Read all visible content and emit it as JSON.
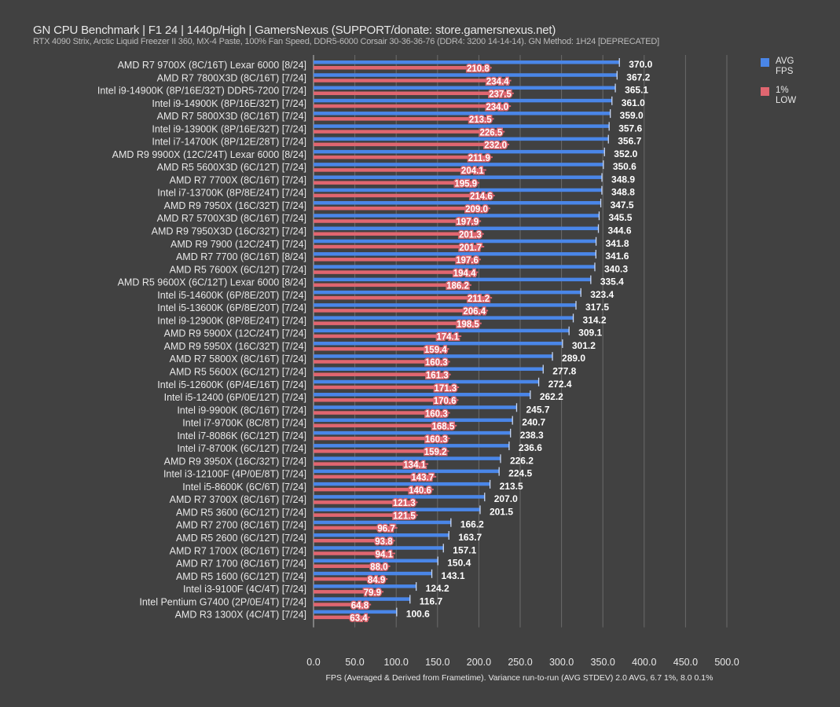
{
  "header": {
    "title": "GN CPU Benchmark | F1 24 | 1440p/High | GamersNexus (SUPPORT/donate: store.gamersnexus.net)",
    "subtitle": "RTX 4090 Strix, Arctic Liquid Freezer II 360, MX-4 Paste, 100% Fan Speed, DDR5-6000 Corsair 30-36-36-76 (DDR4: 3200 14-14-14). GN Method: 1H24 [DEPRECATED]"
  },
  "legend": [
    {
      "line1": "AVG",
      "line2": "FPS",
      "color": "#4a86e8"
    },
    {
      "line1": "1%",
      "line2": "LOW",
      "color": "#e06670"
    }
  ],
  "chart_data": {
    "type": "bar",
    "orientation": "horizontal",
    "xlabel": "FPS (Averaged & Derived from Frametime). Variance run-to-run (AVG STDEV) 2.0 AVG, 6.7 1%, 8.0 0.1%",
    "xlim": [
      0,
      500
    ],
    "xticks": [
      "0.0",
      "50.0",
      "100.0",
      "150.0",
      "200.0",
      "250.0",
      "300.0",
      "350.0",
      "400.0",
      "450.0",
      "500.0"
    ],
    "grid": true,
    "legend_position": "top-right",
    "categories": [
      "AMD R7 9700X (8C/16T) Lexar 6000 [8/24]",
      "AMD R7 7800X3D (8C/16T) [7/24]",
      "Intel i9-14900K (8P/16E/32T) DDR5-7200 [7/24]",
      "Intel i9-14900K (8P/16E/32T) [7/24]",
      "AMD R7 5800X3D (8C/16T) [7/24]",
      "Intel i9-13900K (8P/16E/32T) [7/24]",
      "Intel i7-14700K (8P/12E/28T) [7/24]",
      "AMD R9 9900X (12C/24T) Lexar 6000 [8/24]",
      "AMD R5 5600X3D (6C/12T) [7/24]",
      "AMD R7 7700X (8C/16T) [7/24]",
      "Intel i7-13700K (8P/8E/24T) [7/24]",
      "AMD R9 7950X (16C/32T) [7/24]",
      "AMD R7 5700X3D (8C/16T) [7/24]",
      "AMD R9 7950X3D (16C/32T) [7/24]",
      "AMD R9 7900 (12C/24T) [7/24]",
      "AMD R7 7700 (8C/16T) [8/24]",
      "AMD R5 7600X (6C/12T) [7/24]",
      "AMD R5 9600X (6C/12T) Lexar 6000 [8/24]",
      "Intel i5-14600K (6P/8E/20T) [7/24]",
      "Intel i5-13600K (6P/8E/20T) [7/24]",
      "Intel i9-12900K (8P/8E/24T) [7/24]",
      "AMD R9 5900X (12C/24T) [7/24]",
      "AMD R9 5950X (16C/32T) [7/24]",
      "AMD R7 5800X (8C/16T) [7/24]",
      "AMD R5 5600X (6C/12T) [7/24]",
      "Intel i5-12600K (6P/4E/16T) [7/24]",
      "Intel i5-12400 (6P/0E/12T) [7/24]",
      "Intel i9-9900K (8C/16T) [7/24]",
      "Intel i7-9700K (8C/8T) [7/24]",
      "Intel i7-8086K (6C/12T) [7/24]",
      "Intel i7-8700K (6C/12T) [7/24]",
      "AMD R9 3950X (16C/32T) [7/24]",
      "Intel i3-12100F (4P/0E/8T) [7/24]",
      "Intel i5-8600K (6C/6T) [7/24]",
      "AMD R7 3700X (8C/16T) [7/24]",
      "AMD R5 3600 (6C/12T) [7/24]",
      "AMD R7 2700 (8C/16T) [7/24]",
      "AMD R5 2600 (6C/12T) [7/24]",
      "AMD R7 1700X (8C/16T) [7/24]",
      "AMD R7 1700 (8C/16T) [7/24]",
      "AMD R5 1600 (6C/12T) [7/24]",
      "Intel i3-9100F (4C/4T) [7/24]",
      "Intel Pentium G7400 (2P/0E/4T) [7/24]",
      "AMD R3 1300X (4C/4T) [7/24]"
    ],
    "series": [
      {
        "name": "AVG FPS",
        "color": "#4a86e8",
        "values": [
          370.0,
          367.2,
          365.1,
          361.0,
          359.0,
          357.6,
          356.7,
          352.0,
          350.6,
          348.9,
          348.8,
          347.5,
          345.5,
          344.6,
          341.8,
          341.6,
          340.3,
          335.4,
          323.4,
          317.5,
          314.2,
          309.1,
          301.2,
          289.0,
          277.8,
          272.4,
          262.2,
          245.7,
          240.7,
          238.3,
          236.6,
          226.2,
          224.5,
          213.5,
          207.0,
          201.5,
          166.2,
          163.7,
          157.1,
          150.4,
          143.1,
          124.2,
          116.7,
          100.6
        ]
      },
      {
        "name": "1% LOW",
        "color": "#e06670",
        "values": [
          210.8,
          234.4,
          237.5,
          234.0,
          213.5,
          226.5,
          232.0,
          211.9,
          204.1,
          195.9,
          214.6,
          209.0,
          197.9,
          201.3,
          201.7,
          197.6,
          194.4,
          186.2,
          211.2,
          206.4,
          198.5,
          174.1,
          159.4,
          160.3,
          161.3,
          171.3,
          170.6,
          160.3,
          168.5,
          160.3,
          159.2,
          134.1,
          143.7,
          140.6,
          121.3,
          121.5,
          96.7,
          93.8,
          94.1,
          88.0,
          84.9,
          79.9,
          64.8,
          63.4
        ]
      }
    ]
  }
}
